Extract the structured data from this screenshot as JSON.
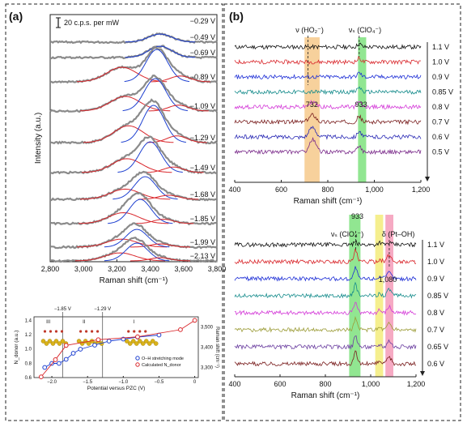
{
  "panels": {
    "a": {
      "label": "(a)"
    },
    "b": {
      "label": "(b)"
    }
  },
  "colors": {
    "trace_gray": "#8a8a8a",
    "fit_red": "#d9262b",
    "fit_blue": "#1d3fd0",
    "band_green": "#7ee27e",
    "band_orange": "#f6c98b",
    "band_yellow": "#f3ec7a",
    "band_pink": "#f59bb8",
    "b_colors": [
      "#111111",
      "#d9262b",
      "#1e2fd6",
      "#168c8c",
      "#d43bd8",
      "#7a1f1f",
      "#2a2ab5",
      "#7a2a8a"
    ],
    "b2_colors": [
      "#111111",
      "#d9262b",
      "#1e2fd6",
      "#168c8c",
      "#d43bd8",
      "#9c9c38",
      "#6b3fa0",
      "#7a1f1f"
    ]
  },
  "chart_data": [
    {
      "type": "line",
      "panel": "a-top",
      "xlabel": "Raman shift (cm⁻¹)",
      "ylabel": "Intensity (a.u.)",
      "xlim": [
        2800,
        3800
      ],
      "xticks": [
        "2,800",
        "3,000",
        "3,200",
        "3,400",
        "3,600",
        "3,800"
      ],
      "scale_bar": "20 c.p.s. per mW",
      "series": [
        {
          "name": "−0.29 V",
          "amp": 0.0,
          "peaks": []
        },
        {
          "name": "−0.49 V",
          "amp": 0.25,
          "peaks": [
            3460
          ]
        },
        {
          "name": "−0.69 V",
          "amp": 0.35,
          "peaks": [
            3460
          ]
        },
        {
          "name": "−0.89 V",
          "amp": 1.0,
          "peaks": [
            3230,
            3440
          ]
        },
        {
          "name": "−1.09 V",
          "amp": 1.0,
          "peaks": [
            3250,
            3430
          ]
        },
        {
          "name": "−1.29 V",
          "amp": 1.15,
          "peaks": [
            3270,
            3420
          ]
        },
        {
          "name": "−1.49 V",
          "amp": 0.95,
          "peaks": [
            3260,
            3400
          ]
        },
        {
          "name": "−1.68 V",
          "amp": 0.7,
          "peaks": [
            3250,
            3370
          ]
        },
        {
          "name": "−1.85 V",
          "amp": 0.75,
          "peaks": [
            3240,
            3340
          ]
        },
        {
          "name": "−1.99 V",
          "amp": 0.55,
          "peaks": [
            3230,
            3320
          ]
        },
        {
          "name": "−2.13 V",
          "amp": 0.55,
          "peaks": [
            3220,
            3320
          ]
        }
      ]
    },
    {
      "type": "line",
      "panel": "a-inset",
      "xlabel": "Potential versus PZC (V)",
      "ylabel_left": "N_donor (a.u.)",
      "ylabel_right": "Raman shift (cm⁻¹)",
      "xlim": [
        -2.25,
        0.05
      ],
      "xticks": [
        "−2.0",
        "−1.5",
        "−1.0",
        "−0.5",
        "0"
      ],
      "ylim_left": [
        0.6,
        1.45
      ],
      "yticks_left": [
        "0.6",
        "0.8",
        "1.0",
        "1.2",
        "1.4"
      ],
      "ylim_right": [
        3250,
        3550
      ],
      "yticks_right": [
        "3,300",
        "3,400",
        "3,500"
      ],
      "region_labels": [
        "III",
        "II",
        "I"
      ],
      "boundary_labels": [
        "−1.85 V",
        "−1.29 V"
      ],
      "series": [
        {
          "name": "O–H stretching mode",
          "color": "#1d3fd0",
          "x": [
            -2.1,
            -2.0,
            -1.9,
            -1.8,
            -1.7,
            -1.6,
            -1.4,
            -1.2,
            -1.0,
            -0.8,
            -0.5
          ],
          "y": [
            3300,
            3320,
            3320,
            3340,
            3370,
            3390,
            3410,
            3430,
            3440,
            3450,
            3460
          ]
        },
        {
          "name": "Calculated N_donor",
          "color": "#d9262b",
          "x": [
            -2.15,
            -1.95,
            -1.8,
            -1.35,
            -0.8,
            -0.2,
            0.0
          ],
          "y": [
            0.61,
            0.85,
            1.05,
            1.13,
            1.17,
            1.27,
            1.4
          ]
        }
      ]
    },
    {
      "type": "line",
      "panel": "b-top",
      "xlabel": "Raman shift (cm⁻¹)",
      "xlim": [
        400,
        1200
      ],
      "xticks": [
        "400",
        "600",
        "800",
        "1,000",
        "1,200"
      ],
      "peak_labels": [
        "ν (HO₂⁻)",
        "νₛ (ClO₄⁻)",
        "732",
        "933"
      ],
      "bands": [
        {
          "x": [
            930,
            965
          ],
          "color": "green"
        },
        {
          "x": [
            700,
            765
          ],
          "color": "orange"
        }
      ],
      "series": [
        {
          "name": "1.1 V"
        },
        {
          "name": "1.0 V"
        },
        {
          "name": "0.9 V"
        },
        {
          "name": "0.85 V"
        },
        {
          "name": "0.8 V"
        },
        {
          "name": "0.7 V"
        },
        {
          "name": "0.6 V"
        },
        {
          "name": "0.5 V"
        }
      ]
    },
    {
      "type": "line",
      "panel": "b-bottom",
      "xlabel": "Raman shift (cm⁻¹)",
      "xlim": [
        400,
        1200
      ],
      "xticks": [
        "400",
        "600",
        "800",
        "1,000",
        "1,200"
      ],
      "peak_labels": [
        "νₛ (ClO₄⁻)",
        "933",
        "δ (Pt–OH)",
        "1,080"
      ],
      "bands": [
        {
          "x": [
            905,
            955
          ],
          "color": "green"
        },
        {
          "x": [
            1020,
            1055
          ],
          "color": "yellow"
        },
        {
          "x": [
            1065,
            1100
          ],
          "color": "pink"
        }
      ],
      "series": [
        {
          "name": "1.1 V"
        },
        {
          "name": "1.0 V"
        },
        {
          "name": "0.9 V"
        },
        {
          "name": "0.85 V"
        },
        {
          "name": "0.8 V"
        },
        {
          "name": "0.7 V"
        },
        {
          "name": "0.65 V"
        },
        {
          "name": "0.6 V"
        }
      ]
    }
  ]
}
